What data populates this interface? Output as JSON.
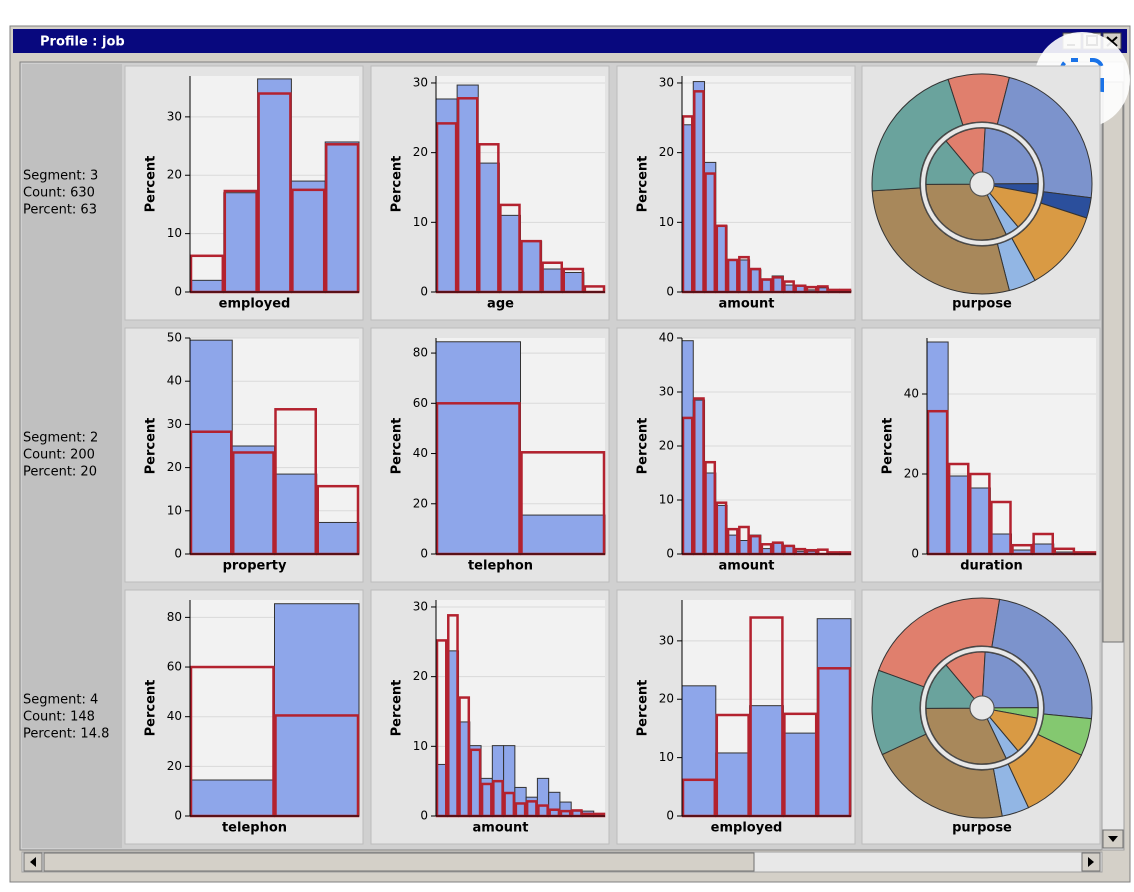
{
  "window": {
    "title": "Profile : job"
  },
  "segments": [
    {
      "lines": [
        "Segment: 3",
        "Count: 630",
        "Percent: 63"
      ]
    },
    {
      "lines": [
        "Segment: 2",
        "Count: 200",
        "Percent: 20"
      ]
    },
    {
      "lines": [
        "Segment: 4",
        "Count: 148",
        "Percent: 14.8"
      ]
    }
  ],
  "chart_data": [
    {
      "type": "histogram",
      "x_label": "employed",
      "y_label": "Percent",
      "ylim": [
        0,
        37
      ],
      "yticks": [
        0,
        10,
        20,
        30
      ],
      "grid": true,
      "series": [
        {
          "color": "#8ea6ea",
          "values": [
            2,
            17,
            36.5,
            19,
            25.7
          ]
        },
        {
          "color": "#b3222f",
          "values": [
            6.2,
            17.3,
            34,
            17.5,
            25.3
          ]
        }
      ]
    },
    {
      "type": "histogram",
      "x_label": "age",
      "y_label": "Percent",
      "ylim": [
        0,
        31
      ],
      "yticks": [
        0,
        10,
        20,
        30
      ],
      "grid": true,
      "series": [
        {
          "color": "#8ea6ea",
          "values": [
            27.7,
            29.7,
            18.5,
            11,
            7.3,
            3.3,
            2.8,
            0
          ]
        },
        {
          "color": "#b3222f",
          "values": [
            24.2,
            27.8,
            21.2,
            12.5,
            7.3,
            4.2,
            3.3,
            0.8
          ]
        }
      ]
    },
    {
      "type": "histogram",
      "x_label": "amount",
      "y_label": "Percent",
      "ylim": [
        0,
        31
      ],
      "yticks": [
        0,
        10,
        20,
        30
      ],
      "grid": true,
      "series": [
        {
          "color": "#8ea6ea",
          "values": [
            24,
            30.2,
            18.6,
            9.5,
            4.6,
            4.6,
            3.2,
            1.7,
            2.3,
            1,
            1,
            0.3,
            0.6,
            0.3,
            0.2
          ]
        },
        {
          "color": "#b3222f",
          "values": [
            25.2,
            28.8,
            17,
            9.5,
            4.6,
            5,
            3.3,
            1.8,
            2.1,
            1.5,
            0.9,
            0.7,
            0.8,
            0.3,
            0.3
          ]
        }
      ]
    },
    {
      "type": "pie",
      "x_label": "purpose",
      "colors": [
        "#e07f6d",
        "#7c93cc",
        "#2b4f9c",
        "#d99a44",
        "#92b6e4",
        "#a8885b",
        "#6aa39d"
      ],
      "series": [
        {
          "values": [
            9,
            23,
            3,
            12,
            4,
            28,
            21
          ]
        },
        {
          "values": [
            12,
            24,
            3,
            11,
            4,
            32,
            14
          ]
        }
      ]
    },
    {
      "type": "histogram",
      "x_label": "property",
      "y_label": "Percent",
      "ylim": [
        0,
        50
      ],
      "yticks": [
        0,
        10,
        20,
        30,
        40,
        50
      ],
      "grid": true,
      "series": [
        {
          "color": "#8ea6ea",
          "values": [
            49.5,
            25,
            18.5,
            7.3
          ]
        },
        {
          "color": "#b3222f",
          "values": [
            28.3,
            23.5,
            33.5,
            15.7
          ]
        }
      ]
    },
    {
      "type": "histogram",
      "x_label": "telephon",
      "y_label": "Percent",
      "ylim": [
        0,
        86
      ],
      "yticks": [
        0,
        20,
        40,
        60,
        80
      ],
      "grid": true,
      "series": [
        {
          "color": "#8ea6ea",
          "values": [
            84.5,
            15.5
          ]
        },
        {
          "color": "#b3222f",
          "values": [
            60,
            40.5
          ]
        }
      ]
    },
    {
      "type": "histogram",
      "x_label": "amount",
      "y_label": "Percent",
      "ylim": [
        0,
        40
      ],
      "yticks": [
        0,
        10,
        20,
        30,
        40
      ],
      "grid": true,
      "series": [
        {
          "color": "#8ea6ea",
          "values": [
            39.5,
            28.5,
            15,
            9,
            3.5,
            2.5,
            3.5,
            1,
            2,
            1.5,
            0.5,
            0.5,
            0,
            0,
            0
          ]
        },
        {
          "color": "#b3222f",
          "values": [
            25.2,
            28.8,
            17,
            9.5,
            4.6,
            5,
            3.3,
            1.8,
            2.1,
            1.5,
            0.9,
            0.7,
            0.8,
            0.3,
            0.3
          ]
        }
      ]
    },
    {
      "type": "histogram",
      "x_label": "duration",
      "y_label": "Percent",
      "ylim": [
        0,
        54
      ],
      "yticks": [
        0,
        20,
        40
      ],
      "grid": true,
      "series": [
        {
          "color": "#8ea6ea",
          "values": [
            53,
            19.5,
            16.5,
            5,
            1,
            2.5,
            0.5,
            0
          ]
        },
        {
          "color": "#b3222f",
          "values": [
            35.7,
            22.5,
            20,
            13,
            2.2,
            5,
            1.3,
            0.4
          ]
        }
      ]
    },
    {
      "type": "histogram",
      "x_label": "telephon",
      "y_label": "Percent",
      "ylim": [
        0,
        87
      ],
      "yticks": [
        0,
        20,
        40,
        60,
        80
      ],
      "grid": true,
      "series": [
        {
          "color": "#8ea6ea",
          "values": [
            14.5,
            85.5
          ]
        },
        {
          "color": "#b3222f",
          "values": [
            60,
            40.5
          ]
        }
      ]
    },
    {
      "type": "histogram",
      "x_label": "amount",
      "y_label": "Percent",
      "ylim": [
        0,
        31
      ],
      "yticks": [
        0,
        10,
        20,
        30
      ],
      "grid": true,
      "series": [
        {
          "color": "#8ea6ea",
          "values": [
            7.4,
            23.7,
            13.5,
            10.1,
            5.4,
            10.1,
            10.1,
            4.1,
            2.7,
            5.4,
            3.4,
            2,
            0.7,
            0.7,
            0
          ]
        },
        {
          "color": "#b3222f",
          "values": [
            25.2,
            28.8,
            17,
            9.5,
            4.6,
            5,
            3.3,
            1.8,
            2.1,
            1.5,
            0.9,
            0.7,
            0.8,
            0.3,
            0.3
          ]
        }
      ]
    },
    {
      "type": "histogram",
      "x_label": "employed",
      "y_label": "Percent",
      "ylim": [
        0,
        37
      ],
      "yticks": [
        0,
        10,
        20,
        30
      ],
      "grid": true,
      "series": [
        {
          "color": "#8ea6ea",
          "values": [
            22.3,
            10.8,
            18.9,
            14.2,
            33.8
          ]
        },
        {
          "color": "#b3222f",
          "values": [
            6.2,
            17.3,
            34,
            17.5,
            25.3
          ]
        }
      ]
    },
    {
      "type": "pie",
      "x_label": "purpose",
      "colors": [
        "#e07f6d",
        "#7c93cc",
        "#84c870",
        "#d99a44",
        "#92b6e4",
        "#a8885b",
        "#6aa39d"
      ],
      "series": [
        {
          "values": [
            22,
            24,
            5.5,
            11,
            4,
            21,
            12.5
          ]
        },
        {
          "values": [
            12,
            24,
            3,
            11,
            4,
            32,
            14
          ]
        }
      ]
    }
  ]
}
